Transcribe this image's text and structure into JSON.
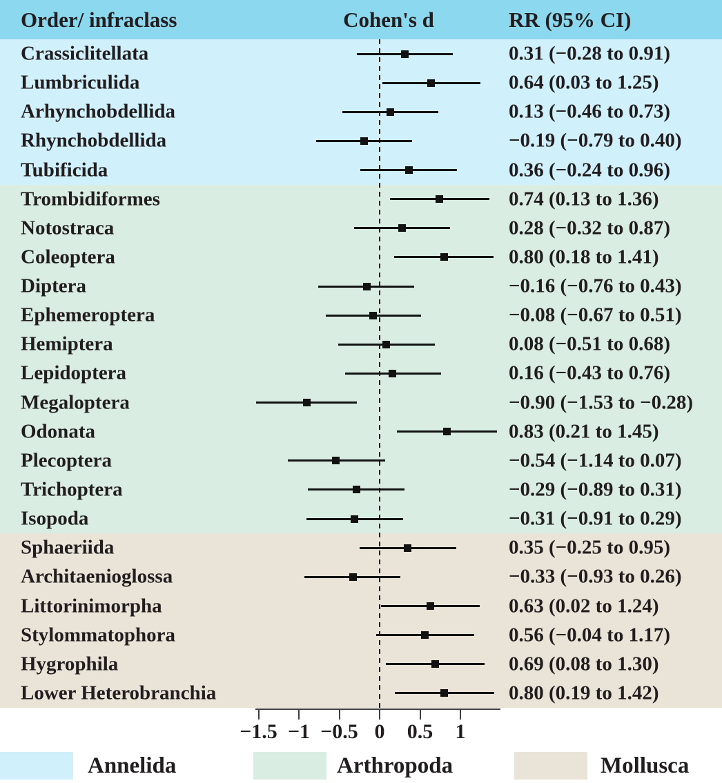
{
  "header": {
    "col1": "Order/ infraclass",
    "col2": "Cohen's d",
    "col3": "RR (95% CI)"
  },
  "colors": {
    "header_bg": "#8CD8EE",
    "annelida_bg": "#D0F0FB",
    "arthropoda_bg": "#D9EDE2",
    "mollusca_bg": "#EAE4D8",
    "line": "#121212",
    "axis": "#404040",
    "text": "#221E1F"
  },
  "chart_data": {
    "type": "forest",
    "title": "",
    "xlabel": "",
    "xlim": [
      -1.54,
      1.5
    ],
    "zero_line": 0,
    "ticks": [
      {
        "value": -1.5,
        "label": "−1.5"
      },
      {
        "value": -1.0,
        "label": "−1"
      },
      {
        "value": -0.5,
        "label": "−0.5"
      },
      {
        "value": 0.0,
        "label": "0"
      },
      {
        "value": 0.5,
        "label": "0.5"
      },
      {
        "value": 1.0,
        "label": "1"
      }
    ],
    "groups": [
      {
        "name": "Annelida",
        "color": "#D0F0FB",
        "rows": [
          {
            "label": "Crassiclitellata",
            "est": 0.31,
            "lo": -0.28,
            "hi": 0.91,
            "text": "0.31 (−0.28 to 0.91)"
          },
          {
            "label": "Lumbriculida",
            "est": 0.64,
            "lo": 0.03,
            "hi": 1.25,
            "text": "0.64 (0.03 to 1.25)"
          },
          {
            "label": "Arhynchobdellida",
            "est": 0.13,
            "lo": -0.46,
            "hi": 0.73,
            "text": "0.13 (−0.46 to 0.73)"
          },
          {
            "label": "Rhynchobdellida",
            "est": -0.19,
            "lo": -0.79,
            "hi": 0.4,
            "text": "−0.19 (−0.79 to 0.40)"
          },
          {
            "label": "Tubificida",
            "est": 0.36,
            "lo": -0.24,
            "hi": 0.96,
            "text": "0.36 (−0.24 to 0.96)"
          }
        ]
      },
      {
        "name": "Arthropoda",
        "color": "#D9EDE2",
        "rows": [
          {
            "label": "Trombidiformes",
            "est": 0.74,
            "lo": 0.13,
            "hi": 1.36,
            "text": "0.74 (0.13 to 1.36)"
          },
          {
            "label": "Notostraca",
            "est": 0.28,
            "lo": -0.32,
            "hi": 0.87,
            "text": "0.28 (−0.32 to 0.87)"
          },
          {
            "label": "Coleoptera",
            "est": 0.8,
            "lo": 0.18,
            "hi": 1.41,
            "text": "0.80 (0.18 to 1.41)"
          },
          {
            "label": "Diptera",
            "est": -0.16,
            "lo": -0.76,
            "hi": 0.43,
            "text": "−0.16 (−0.76 to 0.43)"
          },
          {
            "label": "Ephemeroptera",
            "est": -0.08,
            "lo": -0.67,
            "hi": 0.51,
            "text": "−0.08 (−0.67 to 0.51)"
          },
          {
            "label": "Hemiptera",
            "est": 0.08,
            "lo": -0.51,
            "hi": 0.68,
            "text": "0.08 (−0.51 to 0.68)"
          },
          {
            "label": "Lepidoptera",
            "est": 0.16,
            "lo": -0.43,
            "hi": 0.76,
            "text": "0.16 (−0.43 to 0.76)"
          },
          {
            "label": "Megaloptera",
            "est": -0.9,
            "lo": -1.53,
            "hi": -0.28,
            "text": "−0.90 (−1.53 to −0.28)"
          },
          {
            "label": "Odonata",
            "est": 0.83,
            "lo": 0.21,
            "hi": 1.45,
            "text": "0.83 (0.21 to 1.45)"
          },
          {
            "label": "Plecoptera",
            "est": -0.54,
            "lo": -1.14,
            "hi": 0.07,
            "text": "−0.54 (−1.14 to 0.07)"
          },
          {
            "label": "Trichoptera",
            "est": -0.29,
            "lo": -0.89,
            "hi": 0.31,
            "text": "−0.29 (−0.89 to 0.31)"
          },
          {
            "label": "Isopoda",
            "est": -0.31,
            "lo": -0.91,
            "hi": 0.29,
            "text": "−0.31 (−0.91 to 0.29)"
          }
        ]
      },
      {
        "name": "Mollusca",
        "color": "#EAE4D8",
        "rows": [
          {
            "label": "Sphaeriida",
            "est": 0.35,
            "lo": -0.25,
            "hi": 0.95,
            "text": "0.35 (−0.25 to 0.95)"
          },
          {
            "label": "Architaenioglossa",
            "est": -0.33,
            "lo": -0.93,
            "hi": 0.26,
            "text": "−0.33 (−0.93 to 0.26)"
          },
          {
            "label": "Littorinimorpha",
            "est": 0.63,
            "lo": 0.02,
            "hi": 1.24,
            "text": "0.63 (0.02 to 1.24)"
          },
          {
            "label": "Stylommatophora",
            "est": 0.56,
            "lo": -0.04,
            "hi": 1.17,
            "text": "0.56 (−0.04 to 1.17)"
          },
          {
            "label": "Hygrophila",
            "est": 0.69,
            "lo": 0.08,
            "hi": 1.3,
            "text": "0.69 (0.08 to 1.30)"
          },
          {
            "label": "Lower Heterobranchia",
            "est": 0.8,
            "lo": 0.19,
            "hi": 1.42,
            "text": "0.80 (0.19 to 1.42)"
          }
        ]
      }
    ]
  },
  "legend": {
    "items": [
      {
        "label": "Annelida",
        "color": "#D0F0FB"
      },
      {
        "label": "Arthropoda",
        "color": "#D9EDE2"
      },
      {
        "label": "Mollusca",
        "color": "#EAE4D8"
      }
    ]
  }
}
